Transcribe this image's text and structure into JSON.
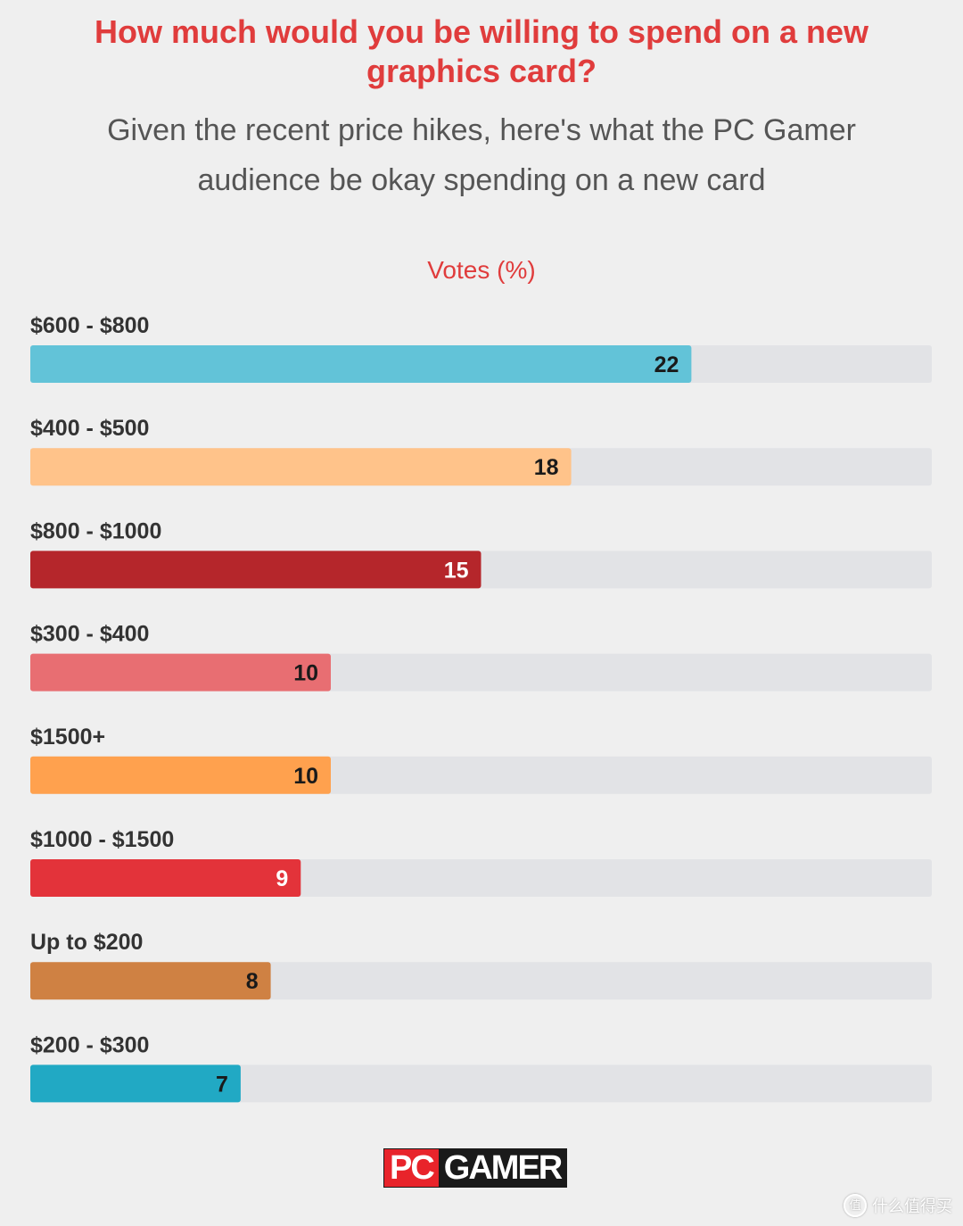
{
  "title": "How much would you be willing to spend on a new graphics card?",
  "subtitle": "Given the recent price hikes, here's what the PC Gamer audience be okay spending on a new card",
  "logo": {
    "part1": "PC",
    "part2": "GAMER"
  },
  "watermark": {
    "text": "什么值得买",
    "icon": "值"
  },
  "chart_data": {
    "type": "bar",
    "orientation": "horizontal",
    "xlabel": "Votes (%)",
    "xlim": [
      0,
      30
    ],
    "grid": false,
    "categories": [
      "$600 - $800",
      "$400 - $500",
      "$800 - $1000",
      "$300 - $400",
      "$1500+",
      "$1000 - $1500",
      "Up to $200",
      "$200 - $300"
    ],
    "values": [
      22,
      18,
      15,
      10,
      10,
      9,
      8,
      7
    ],
    "colors": [
      "#62c3d8",
      "#ffc38a",
      "#b5262b",
      "#e86e72",
      "#ffa14e",
      "#e3333a",
      "#cf8143",
      "#21a9c4"
    ],
    "label_colors": [
      "#1a1a1a",
      "#1a1a1a",
      "#ffffff",
      "#1a1a1a",
      "#1a1a1a",
      "#ffffff",
      "#1a1a1a",
      "#1a1a1a"
    ],
    "track_color": "#e2e3e6"
  }
}
